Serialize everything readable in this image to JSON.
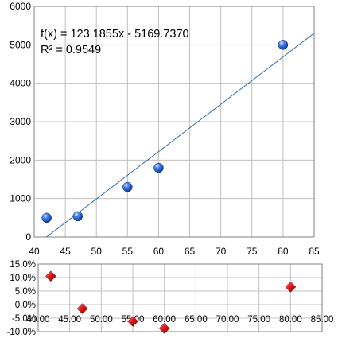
{
  "chart_data": [
    {
      "type": "scatter",
      "xlim": [
        40,
        85
      ],
      "ylim": [
        0,
        6000
      ],
      "x_ticks": [
        "40",
        "45",
        "50",
        "55",
        "60",
        "65",
        "70",
        "75",
        "80",
        "85"
      ],
      "y_ticks": [
        "0",
        "1000",
        "2000",
        "3000",
        "4000",
        "5000",
        "6000"
      ],
      "grid": true,
      "points": [
        {
          "x": 42,
          "y": 500
        },
        {
          "x": 47,
          "y": 540
        },
        {
          "x": 55,
          "y": 1300
        },
        {
          "x": 60,
          "y": 1800
        },
        {
          "x": 80,
          "y": 5000
        }
      ],
      "trendline": {
        "slope": 123.1855,
        "intercept": -5169.737
      },
      "annotations": {
        "equation": "f(x) = 123.1855x - 5169.7370",
        "r_squared": "R² = 0.9549"
      },
      "colors": {
        "points": "#1f5fd0",
        "trendline": "#2f6fa8",
        "grid": "#c0c0c0"
      }
    },
    {
      "type": "scatter",
      "xlim": [
        40,
        85
      ],
      "ylim": [
        -10,
        15
      ],
      "x_ticks": [
        "40.00",
        "45.00",
        "50.00",
        "55.00",
        "60.00",
        "65.00",
        "70.00",
        "75.00",
        "80.00",
        "85.00"
      ],
      "y_ticks": [
        "15.0%",
        "10.0%",
        "5.0%",
        "0.0%",
        "-5.0%",
        "-10.0%"
      ],
      "y_tick_values": [
        15,
        10,
        5,
        0,
        -5,
        -10
      ],
      "grid": true,
      "points": [
        {
          "x": 42,
          "y": 10.5
        },
        {
          "x": 47,
          "y": -1.5
        },
        {
          "x": 55,
          "y": -6.2
        },
        {
          "x": 60,
          "y": -8.8
        },
        {
          "x": 80,
          "y": 6.5
        }
      ],
      "colors": {
        "points": "#d42020",
        "grid": "#c0c0c0"
      }
    }
  ]
}
